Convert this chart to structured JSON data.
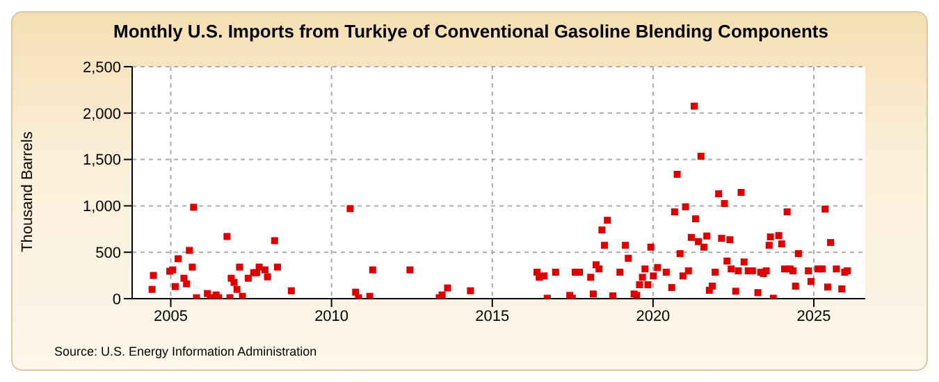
{
  "chart_data": {
    "type": "scatter",
    "title": "Monthly U.S. Imports from Turkiye of Conventional Gasoline Blending Components",
    "ylabel": "Thousand Barrels",
    "annotations": [
      "Source: U.S. Energy Information Administration"
    ],
    "x": [
      2004.42,
      2004.46,
      2004.97,
      2005.06,
      2005.14,
      2005.23,
      2005.41,
      2005.49,
      2005.58,
      2005.67,
      2005.71,
      2005.8,
      2006.14,
      2006.23,
      2006.41,
      2006.49,
      2006.75,
      2006.84,
      2006.88,
      2006.97,
      2007.06,
      2007.14,
      2007.23,
      2007.41,
      2007.58,
      2007.67,
      2007.75,
      2007.93,
      2008.01,
      2008.23,
      2008.32,
      2008.75,
      2010.58,
      2010.75,
      2010.84,
      2011.19,
      2011.28,
      2012.44,
      2013.35,
      2013.44,
      2013.61,
      2014.32,
      2016.39,
      2016.46,
      2016.61,
      2016.71,
      2016.97,
      2017.41,
      2017.49,
      2017.58,
      2017.71,
      2018.06,
      2018.14,
      2018.23,
      2018.32,
      2018.41,
      2018.49,
      2018.58,
      2018.75,
      2018.97,
      2019.14,
      2019.23,
      2019.41,
      2019.49,
      2019.58,
      2019.67,
      2019.75,
      2019.84,
      2019.93,
      2020.01,
      2020.14,
      2020.41,
      2020.58,
      2020.67,
      2020.75,
      2020.84,
      2020.93,
      2021.01,
      2021.1,
      2021.19,
      2021.28,
      2021.32,
      2021.41,
      2021.49,
      2021.58,
      2021.67,
      2021.75,
      2021.84,
      2021.93,
      2022.04,
      2022.13,
      2022.22,
      2022.3,
      2022.39,
      2022.43,
      2022.57,
      2022.65,
      2022.74,
      2022.83,
      2022.96,
      2023.09,
      2023.26,
      2023.35,
      2023.43,
      2023.52,
      2023.61,
      2023.65,
      2023.74,
      2023.91,
      2024.0,
      2024.09,
      2024.17,
      2024.26,
      2024.35,
      2024.43,
      2024.52,
      2024.83,
      2024.91,
      2025.13,
      2025.26,
      2025.35,
      2025.43,
      2025.52,
      2025.7,
      2025.87,
      2025.96,
      2026.04
    ],
    "series": [
      {
        "color": "#dd0000",
        "values": [
          100,
          250,
          295,
          310,
          130,
          430,
          220,
          160,
          520,
          340,
          985,
          10,
          55,
          10,
          40,
          10,
          670,
          10,
          220,
          175,
          100,
          340,
          25,
          220,
          280,
          280,
          340,
          310,
          235,
          625,
          340,
          85,
          970,
          70,
          10,
          25,
          310,
          310,
          10,
          40,
          115,
          85,
          285,
          230,
          245,
          5,
          285,
          35,
          5,
          285,
          285,
          230,
          50,
          365,
          320,
          740,
          575,
          845,
          30,
          285,
          575,
          435,
          50,
          35,
          150,
          230,
          320,
          150,
          555,
          245,
          335,
          285,
          120,
          935,
          1340,
          485,
          245,
          990,
          300,
          660,
          2075,
          860,
          615,
          1535,
          555,
          675,
          90,
          135,
          285,
          1130,
          650,
          1025,
          405,
          635,
          320,
          80,
          300,
          1145,
          395,
          300,
          300,
          65,
          285,
          270,
          300,
          575,
          665,
          5,
          680,
          590,
          320,
          935,
          320,
          300,
          135,
          485,
          300,
          185,
          320,
          320,
          965,
          125,
          605,
          320,
          105,
          285,
          300
        ]
      }
    ],
    "xlim": [
      2003.8,
      2026.6
    ],
    "xticks": [
      2005,
      2010,
      2015,
      2020,
      2025
    ],
    "ylim": [
      0,
      2500
    ],
    "yticks": [
      0,
      500,
      {
        "value": 1000,
        "label": "1,000"
      },
      {
        "value": 1500,
        "label": "1,500"
      },
      {
        "value": 2000,
        "label": "2,000"
      },
      {
        "value": 2500,
        "label": "2,500"
      }
    ],
    "grid": true,
    "marker": "square"
  }
}
